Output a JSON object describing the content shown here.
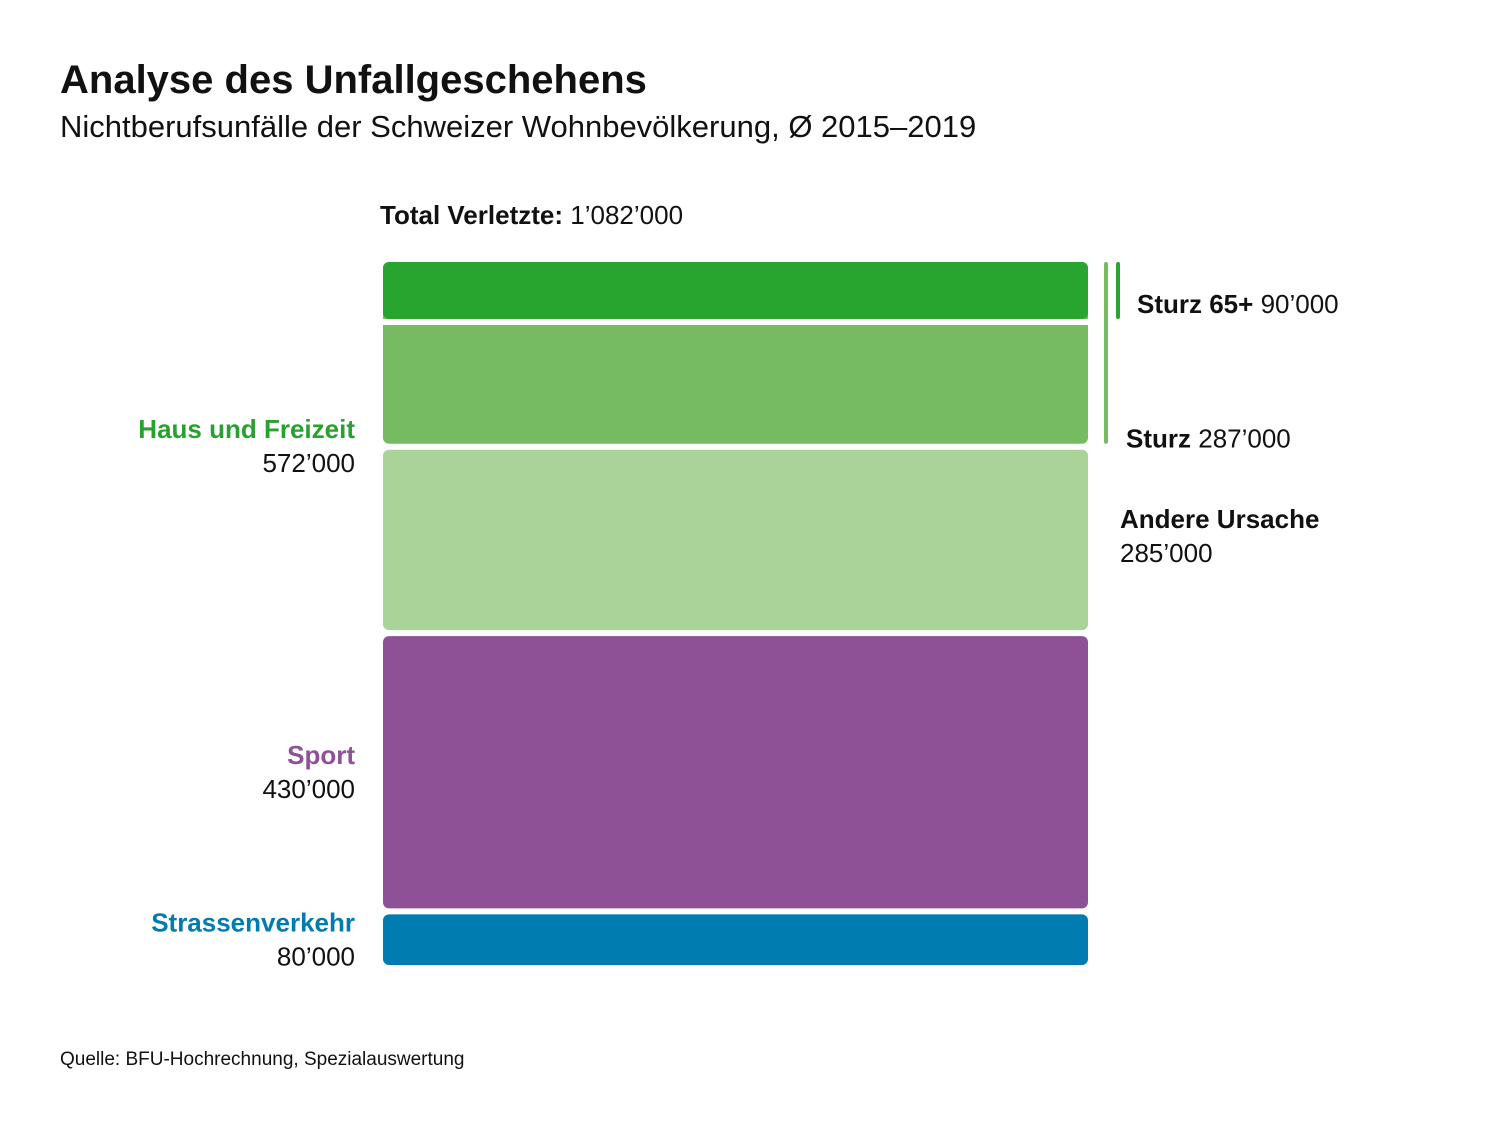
{
  "chart_data": {
    "type": "stack",
    "title": "Analyse des Unfallgeschehens",
    "subtitle": "Nichtberufsunfälle der Schweizer Wohnbevölkerung, Ø 2015–2019",
    "total_name": "Total Verletzte:",
    "total": 1082000,
    "total_label": "1’082’000",
    "groups": [
      {
        "name": "Haus und Freizeit",
        "value": 572000,
        "value_label": "572’000",
        "color": "#27a22f",
        "parts": [
          {
            "name": "Sturz",
            "value": 287000,
            "value_label": "287’000",
            "color": "#76bb62",
            "sub": {
              "name": "Sturz 65+",
              "value": 90000,
              "value_label": "90’000",
              "color": "#27a52f"
            }
          },
          {
            "name": "Andere Ursache",
            "value": 285000,
            "value_label": "285’000",
            "color": "#a9d399"
          }
        ]
      },
      {
        "name": "Sport",
        "value": 430000,
        "value_label": "430’000",
        "color": "#8e5196"
      },
      {
        "name": "Strassenverkehr",
        "value": 80000,
        "value_label": "80’000",
        "color": "#007cb0"
      }
    ],
    "source": "Quelle: BFU-Hochrechnung, Spezialauswertung"
  }
}
